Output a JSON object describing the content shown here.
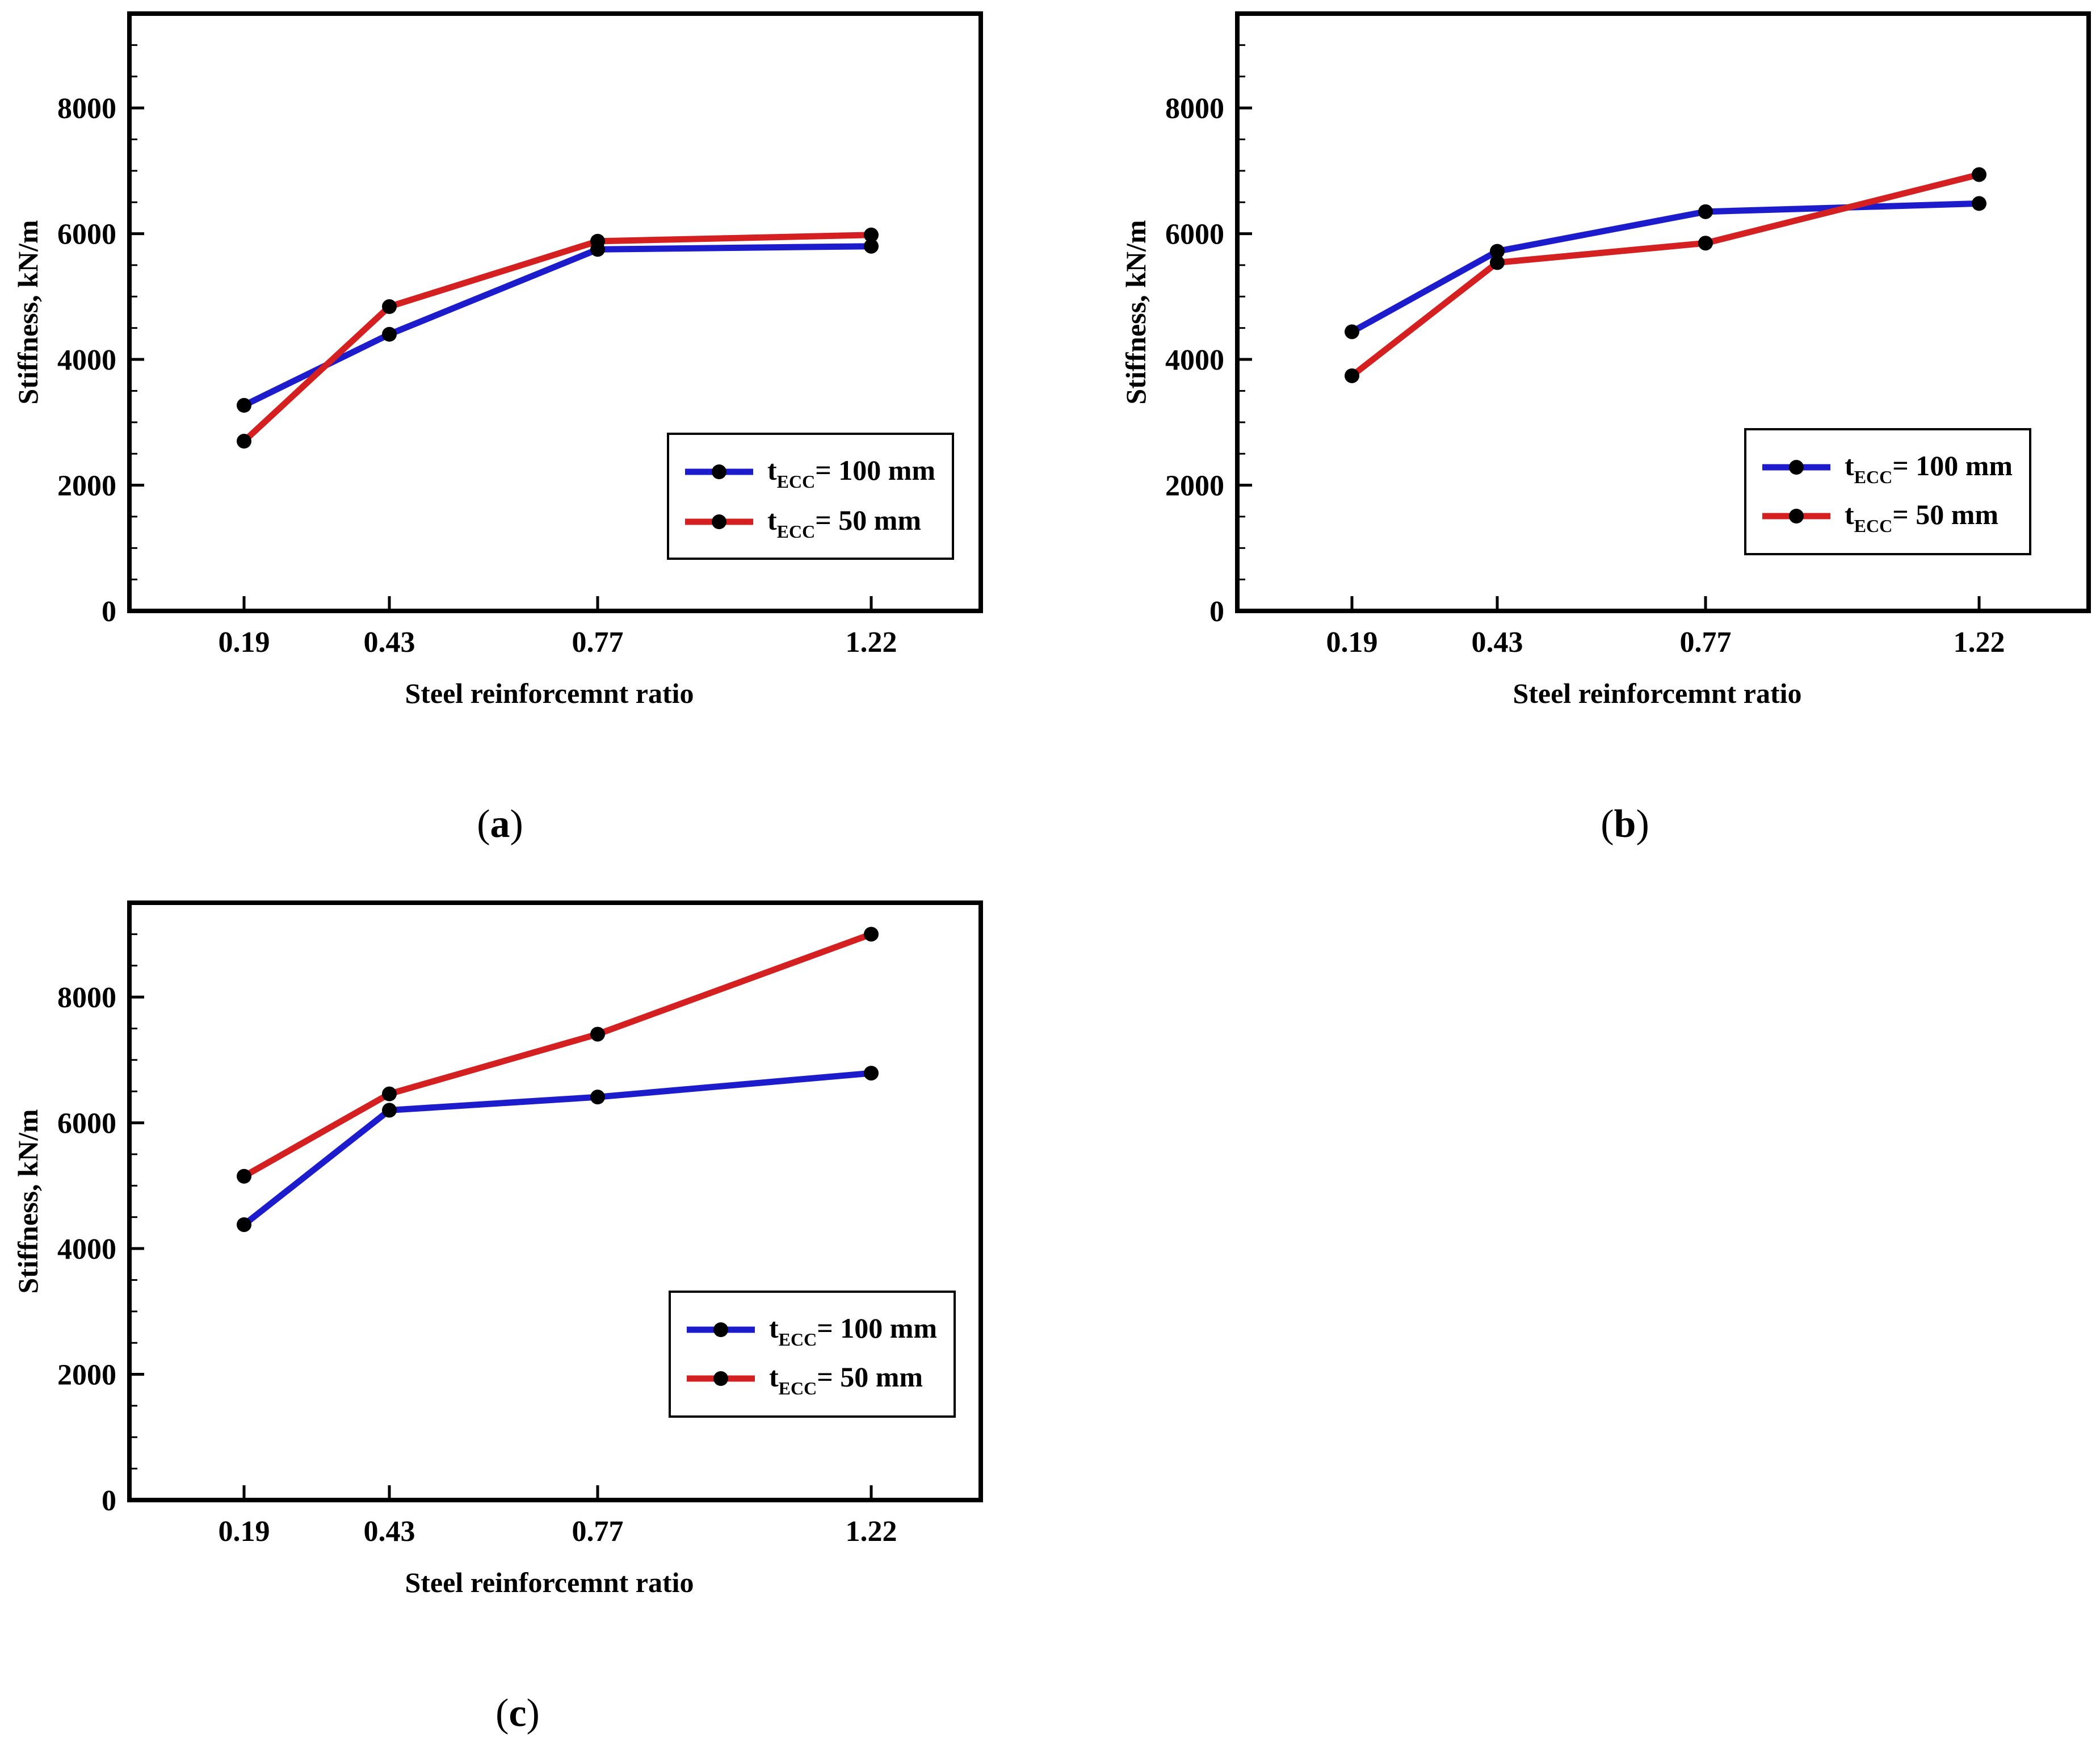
{
  "colors": {
    "series_100": "#1c1ccc",
    "series_50": "#d42020",
    "marker": "#000000",
    "axis": "#000000"
  },
  "chart_data": [
    {
      "panel": "a",
      "type": "line",
      "xlabel": "Steel reinforcemnt ratio",
      "ylabel": "Stiffness, kN/m",
      "categories": [
        "0.19",
        "0.43",
        "0.77",
        "1.22"
      ],
      "yticks": [
        "0",
        "2000",
        "4000",
        "6000",
        "8000"
      ],
      "ylim": [
        0,
        9500
      ],
      "legend_position": "lower-right",
      "series": [
        {
          "name_main": "t",
          "name_sub": "ECC",
          "name_rest": "= 100 mm",
          "color": "#1c1ccc",
          "values": [
            3270,
            4400,
            5750,
            5800
          ]
        },
        {
          "name_main": "t",
          "name_sub": "ECC",
          "name_rest": "= 50 mm",
          "color": "#d42020",
          "values": [
            2700,
            4840,
            5880,
            5980
          ]
        }
      ]
    },
    {
      "panel": "b",
      "type": "line",
      "xlabel": "Steel reinforcemnt ratio",
      "ylabel": "Stiffness, kN/m",
      "categories": [
        "0.19",
        "0.43",
        "0.77",
        "1.22"
      ],
      "yticks": [
        "0",
        "2000",
        "4000",
        "6000",
        "8000"
      ],
      "ylim": [
        0,
        9500
      ],
      "legend_position": "lower-right",
      "series": [
        {
          "name_main": "t",
          "name_sub": "ECC",
          "name_rest": "= 100 mm",
          "color": "#1c1ccc",
          "values": [
            4440,
            5720,
            6350,
            6480
          ]
        },
        {
          "name_main": "t",
          "name_sub": "ECC",
          "name_rest": "= 50 mm",
          "color": "#d42020",
          "values": [
            3740,
            5540,
            5850,
            6940
          ]
        }
      ]
    },
    {
      "panel": "c",
      "type": "line",
      "xlabel": "Steel reinforcemnt ratio",
      "ylabel": "Stiffness, kN/m",
      "categories": [
        "0.19",
        "0.43",
        "0.77",
        "1.22"
      ],
      "yticks": [
        "0",
        "2000",
        "4000",
        "6000",
        "8000"
      ],
      "ylim": [
        0,
        9500
      ],
      "legend_position": "lower-right",
      "series": [
        {
          "name_main": "t",
          "name_sub": "ECC",
          "name_rest": "= 100 mm",
          "color": "#1c1ccc",
          "values": [
            4380,
            6200,
            6410,
            6790
          ]
        },
        {
          "name_main": "t",
          "name_sub": "ECC",
          "name_rest": "= 50 mm",
          "color": "#d42020",
          "values": [
            5150,
            6460,
            7410,
            9000
          ]
        }
      ]
    }
  ],
  "captions": [
    {
      "open": "(",
      "letter": "a",
      "close": ")"
    },
    {
      "open": "(",
      "letter": "b",
      "close": ")"
    },
    {
      "open": "(",
      "letter": "c",
      "close": ")"
    }
  ]
}
